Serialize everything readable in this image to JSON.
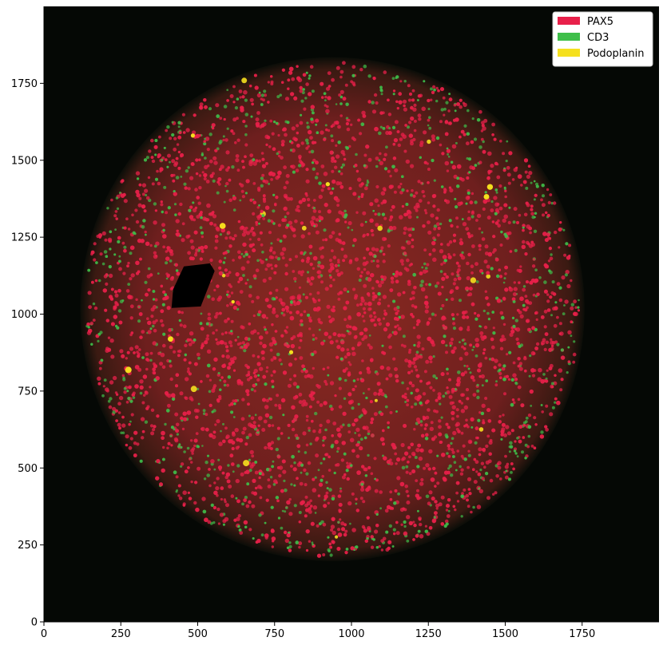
{
  "legend": {
    "position": "top-right",
    "items": [
      {
        "label": "PAX5",
        "color": "#e8204a"
      },
      {
        "label": "CD3",
        "color": "#3fbf4a"
      },
      {
        "label": "Podoplanin",
        "color": "#f5e01e"
      }
    ]
  },
  "axes": {
    "x": {
      "range": [
        0,
        2000
      ],
      "ticks": [
        0,
        250,
        500,
        750,
        1000,
        1250,
        1500,
        1750
      ]
    },
    "y": {
      "range": [
        0,
        2000
      ],
      "ticks": [
        0,
        250,
        500,
        750,
        1000,
        1250,
        1500,
        1750
      ]
    }
  },
  "image": {
    "background": "#050805",
    "tissue_center": [
      938,
      1016
    ],
    "tissue_radius": 820,
    "colors": {
      "pax5": "#e8204a",
      "cd3": "#3fbf4a",
      "podoplanin": "#f5e01e"
    }
  }
}
